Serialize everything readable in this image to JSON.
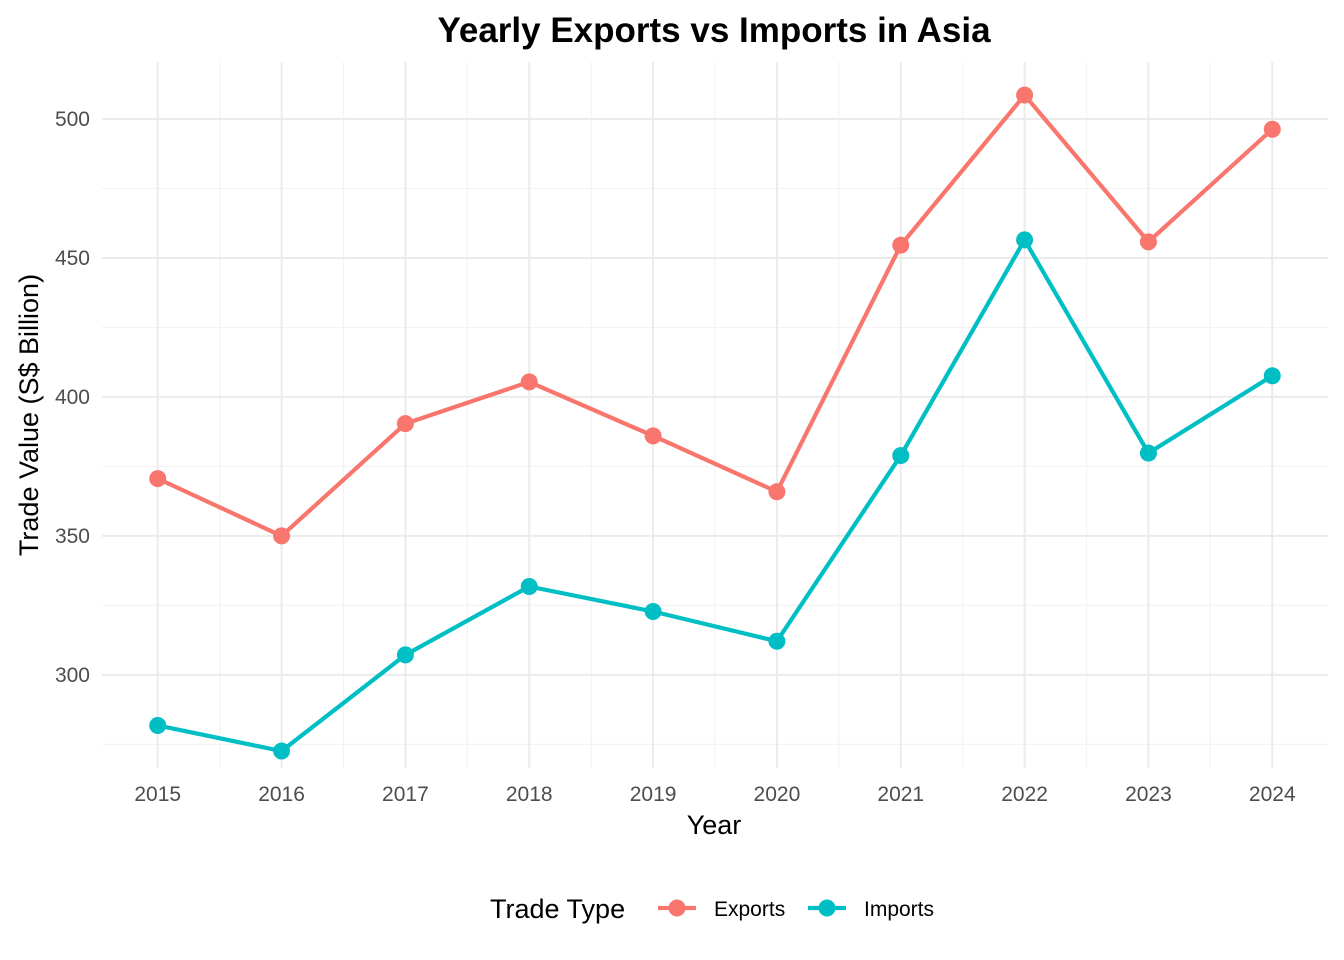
{
  "chart_data": {
    "type": "line",
    "title": "Yearly Exports vs Imports in Asia",
    "xlabel": "Year",
    "ylabel": "Trade Value (S$ Billion)",
    "x": [
      2015,
      2016,
      2017,
      2018,
      2019,
      2020,
      2021,
      2022,
      2023,
      2024
    ],
    "x_tick_labels": [
      "2015",
      "2016",
      "2017",
      "2018",
      "2019",
      "2020",
      "2021",
      "2022",
      "2023",
      "2024"
    ],
    "y_ticks": [
      300,
      350,
      400,
      450,
      500
    ],
    "y_tick_labels": [
      "300",
      "350",
      "400",
      "450",
      "500"
    ],
    "ylim": [
      266.5,
      520.5
    ],
    "xlim": [
      2014.55,
      2024.45
    ],
    "grid": true,
    "legend": {
      "title": "Trade Type",
      "position": "bottom"
    },
    "series": [
      {
        "name": "Exports",
        "color": "#F8766D",
        "values": [
          370.6,
          350.0,
          390.4,
          405.4,
          386.0,
          365.9,
          454.6,
          508.6,
          455.8,
          496.3
        ]
      },
      {
        "name": "Imports",
        "color": "#00BFC4",
        "values": [
          281.8,
          272.6,
          307.2,
          331.8,
          322.8,
          312.1,
          378.9,
          456.5,
          379.8,
          407.6
        ]
      }
    ]
  }
}
